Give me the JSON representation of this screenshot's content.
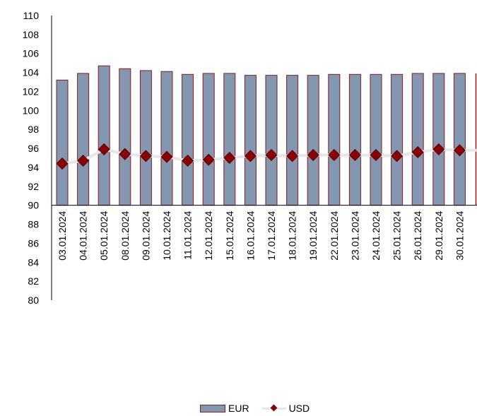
{
  "chart_data": {
    "type": "bar",
    "categories": [
      "03.01.2024",
      "04.01.2024",
      "05.01.2024",
      "08.01.2024",
      "09.01.2024",
      "10.01.2024",
      "11.01.2024",
      "12.01.2024",
      "15.01.2024",
      "16.01.2024",
      "17.01.2024",
      "18.01.2024",
      "19.01.2024",
      "22.01.2024",
      "23.01.2024",
      "24.01.2024",
      "25.01.2024",
      "26.01.2024",
      "29.01.2024",
      "30.01.2024"
    ],
    "series": [
      {
        "name": "EUR",
        "type": "bar",
        "color": "#8497b0",
        "edge": "#8b1a1a",
        "values": [
          103.2,
          103.9,
          104.7,
          104.4,
          104.2,
          104.1,
          103.8,
          103.9,
          103.9,
          103.7,
          103.7,
          103.7,
          103.7,
          103.8,
          103.8,
          103.8,
          103.8,
          103.9,
          103.9,
          103.9
        ]
      },
      {
        "name": "USD",
        "type": "line",
        "color": "#e6e6e6",
        "marker": "diamond",
        "marker_color": "#8b0000",
        "values": [
          94.4,
          94.7,
          95.9,
          95.4,
          95.2,
          95.1,
          94.7,
          94.8,
          95.0,
          95.2,
          95.3,
          95.2,
          95.3,
          95.3,
          95.3,
          95.3,
          95.2,
          95.6,
          95.9,
          95.8
        ]
      }
    ],
    "ylim": [
      80,
      110
    ],
    "yticks": [
      80,
      82,
      84,
      86,
      88,
      90,
      92,
      94,
      96,
      98,
      100,
      102,
      104,
      106,
      108,
      110
    ],
    "bar_base": 90,
    "title": "",
    "xlabel": "",
    "ylabel": "",
    "grid": false,
    "legend": "bottom-center"
  },
  "legend": {
    "eur": "EUR",
    "usd": "USD"
  }
}
